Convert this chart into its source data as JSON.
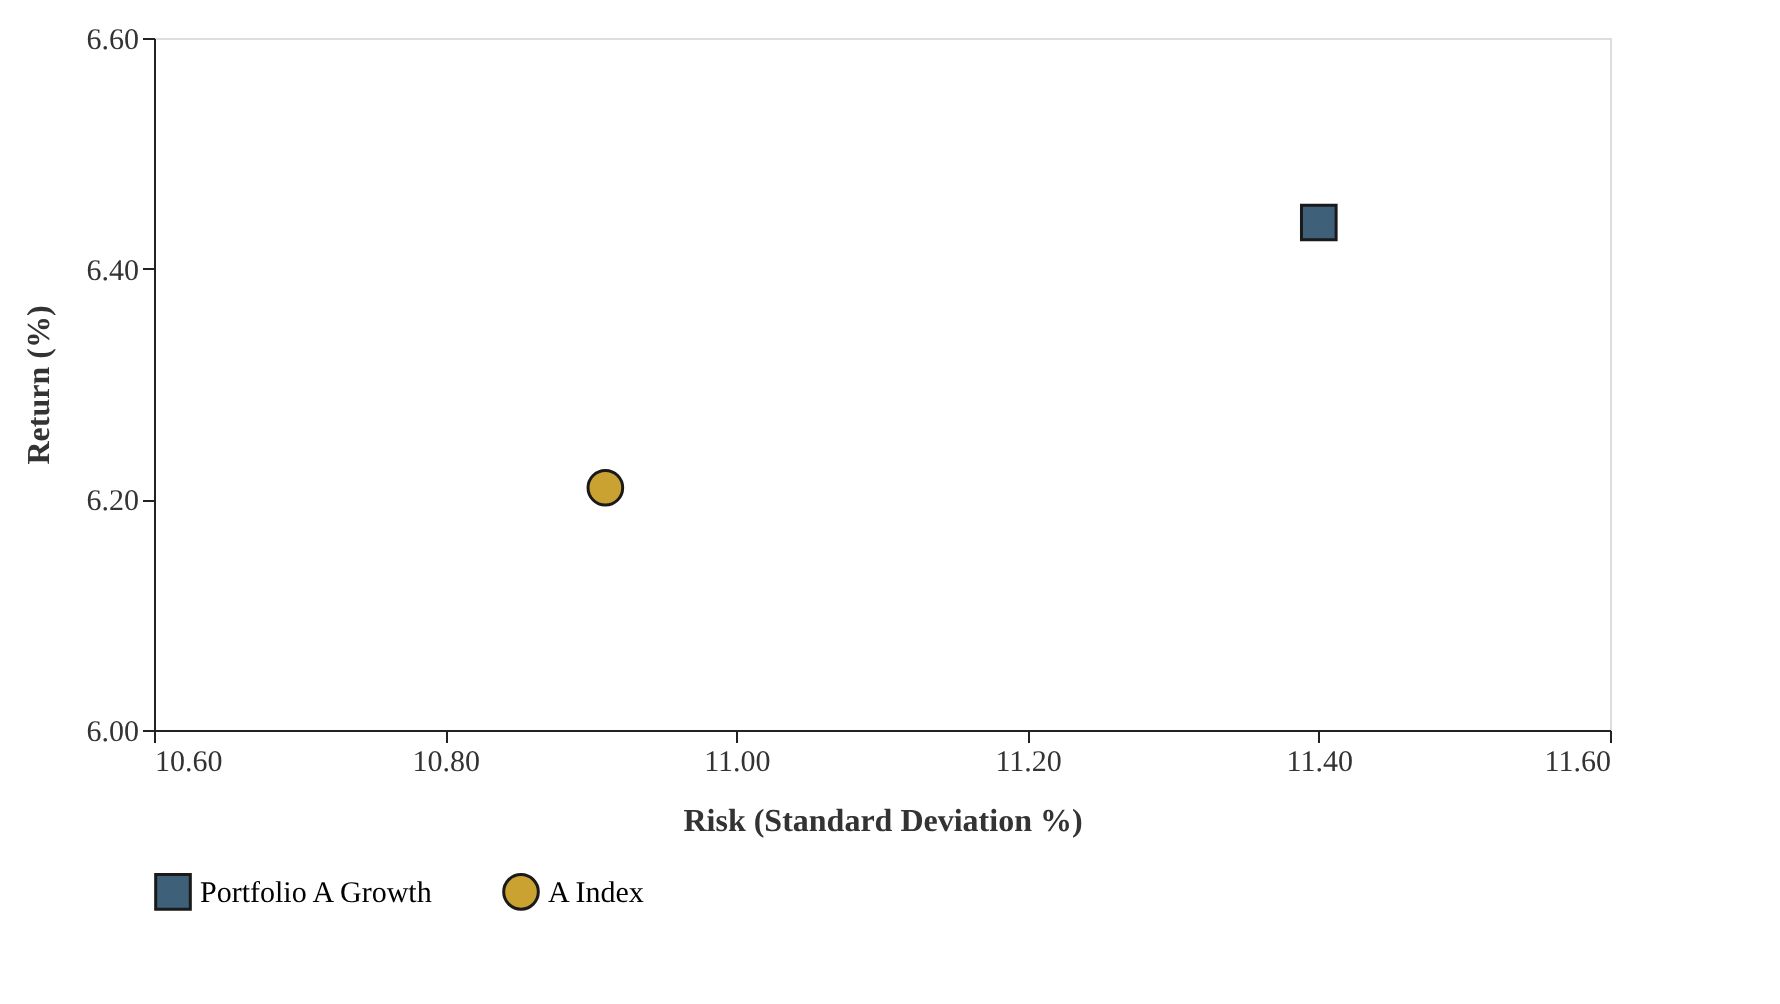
{
  "chart_data": {
    "type": "scatter",
    "xlabel": "Risk (Standard Deviation %)",
    "ylabel": "Return (%)",
    "xlim": [
      10.6,
      11.6
    ],
    "xticks": [
      {
        "value": 10.6,
        "label": "10.60"
      },
      {
        "value": 10.8,
        "label": "10.80"
      },
      {
        "value": 11.0,
        "label": "11.00"
      },
      {
        "value": 11.2,
        "label": "11.20"
      },
      {
        "value": 11.4,
        "label": "11.40"
      },
      {
        "value": 11.6,
        "label": "11.60"
      }
    ],
    "ylim": [
      6.0,
      6.6
    ],
    "yticks": [
      {
        "value": 6.0,
        "label": "6.00"
      },
      {
        "value": 6.2,
        "label": "6.20"
      },
      {
        "value": 6.4,
        "label": "6.40"
      },
      {
        "value": 6.6,
        "label": "6.60"
      }
    ],
    "grid": false,
    "legend": "bottom",
    "series": [
      {
        "name": "Portfolio A Growth",
        "color": "#3f6079",
        "marker": "square",
        "x": [
          11.4
        ],
        "values": [
          6.44
        ]
      },
      {
        "name": "A Index",
        "color": "#c9a232",
        "marker": "circle",
        "x": [
          10.91
        ],
        "values": [
          6.21
        ]
      }
    ]
  }
}
